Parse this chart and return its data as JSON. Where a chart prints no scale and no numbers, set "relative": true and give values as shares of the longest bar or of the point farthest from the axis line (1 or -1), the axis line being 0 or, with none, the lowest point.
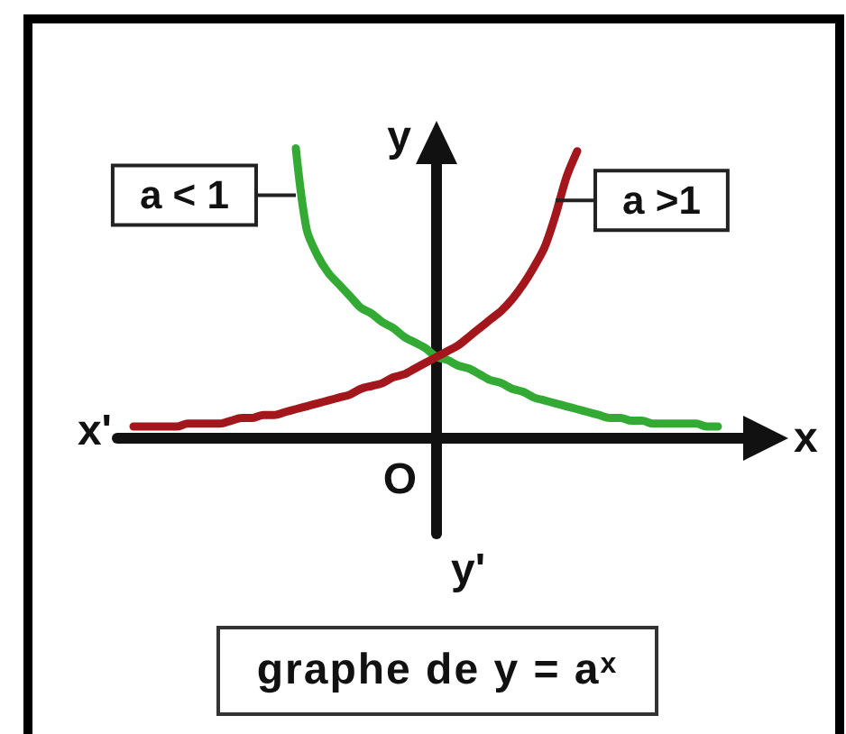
{
  "chart_data": {
    "type": "line",
    "title": "graphe de y = a$^{x}$",
    "xlabel": "x",
    "ylabel": "y",
    "annotations": [
      "x'",
      "y'",
      "O"
    ],
    "relative": true,
    "categories": [
      null,
      null,
      null,
      null,
      null,
      null,
      null,
      null,
      null,
      null,
      null,
      null,
      null,
      null,
      null,
      null,
      null,
      null,
      null,
      null,
      null,
      null,
      null,
      null,
      null,
      null,
      null,
      null,
      null,
      null,
      null,
      null,
      null,
      null,
      null,
      null,
      null,
      null,
      null,
      null,
      null,
      null,
      null,
      null,
      null,
      null,
      null,
      null,
      null,
      null,
      null,
      null,
      null,
      null,
      null,
      null,
      null,
      null,
      null
    ],
    "series": [
      {
        "name": "a < 1",
        "color": "#33aa33",
        "values": [
          null,
          null,
          null,
          null,
          null,
          null,
          null,
          null,
          null,
          null,
          null,
          null,
          null,
          null,
          null,
          null,
          1.0,
          0.72,
          0.63,
          0.57,
          0.53,
          0.49,
          0.45,
          0.43,
          0.4,
          0.38,
          0.35,
          0.33,
          0.31,
          0.28,
          0.27,
          0.25,
          0.24,
          0.22,
          0.2,
          0.19,
          0.17,
          0.16,
          0.14,
          0.13,
          0.12,
          0.11,
          0.1,
          0.09,
          0.08,
          0.07,
          0.07,
          0.06,
          0.06,
          0.05,
          0.05,
          0.05,
          0.05,
          0.05,
          0.04,
          0.04,
          null,
          null,
          null
        ]
      },
      {
        "name": "a >1",
        "color": "#a3161c",
        "values": [
          null,
          0.04,
          0.04,
          0.04,
          0.04,
          0.04,
          0.05,
          0.05,
          0.05,
          0.05,
          0.06,
          0.07,
          0.07,
          0.08,
          0.08,
          0.09,
          0.1,
          0.11,
          0.12,
          0.13,
          0.14,
          0.15,
          0.17,
          0.18,
          0.19,
          0.21,
          0.22,
          0.24,
          0.26,
          0.28,
          0.3,
          0.32,
          0.35,
          0.38,
          0.41,
          0.44,
          0.48,
          0.53,
          0.59,
          0.66,
          0.77,
          0.9,
          0.99,
          null,
          null,
          null,
          null,
          null,
          null,
          null,
          null,
          null,
          null,
          null,
          null,
          null,
          null,
          null,
          null
        ]
      }
    ]
  }
}
